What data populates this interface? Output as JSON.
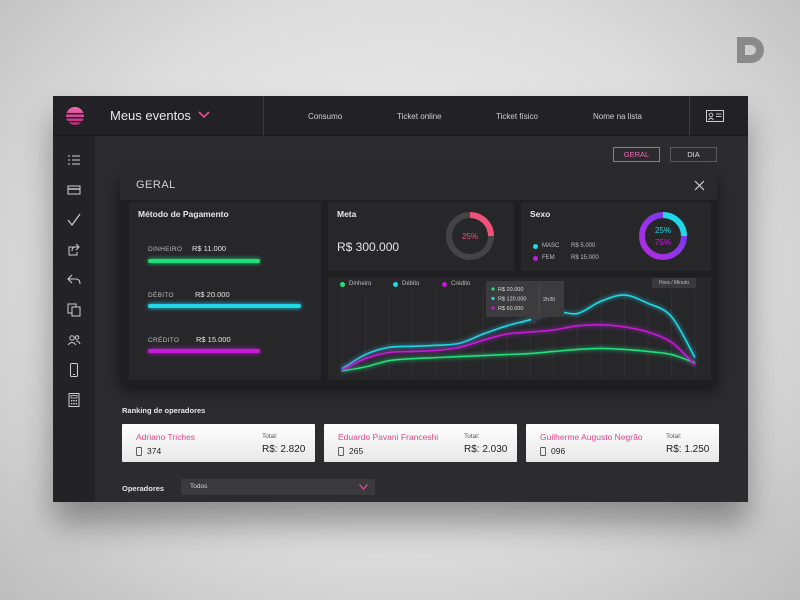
{
  "header": {
    "event_label": "Meus eventos",
    "nav": [
      "Consumo",
      "Ticket online",
      "Ticket físico",
      "Nome na lista"
    ]
  },
  "sidebar": {
    "icons": [
      "list-icon",
      "credit-card-icon",
      "check-icon",
      "share-icon",
      "undo-icon",
      "copy-icon",
      "users-icon",
      "mobile-icon",
      "calculator-icon"
    ]
  },
  "tabs": {
    "geral": "GERAL",
    "dia": "DIA",
    "active": "geral"
  },
  "panel": {
    "title": "GERAL"
  },
  "payment": {
    "title": "Método de Pagamento",
    "items": [
      {
        "label": "DINHEIRO",
        "value": "R$ 11.000",
        "color": "#1ee07a",
        "fraction": 0.73
      },
      {
        "label": "DÉBITO",
        "value": "R$ 20.000",
        "color": "#20d8e8",
        "fraction": 1.0
      },
      {
        "label": "CRÉDITO",
        "value": "R$ 15.000",
        "color": "#c51bd9",
        "fraction": 0.73
      }
    ]
  },
  "meta": {
    "title": "Meta",
    "value": "R$ 300.000",
    "percent": "25%",
    "fraction": 0.25,
    "color": "#f0507a"
  },
  "sexo": {
    "title": "Sexo",
    "items": [
      {
        "label": "MASC",
        "value": "R$ 5.000",
        "percent": "25%",
        "color": "#20d8e8",
        "fraction": 0.25
      },
      {
        "label": "FEM",
        "value": "R$ 15.000",
        "percent": "75%",
        "color": "#c51bd9",
        "fraction": 0.75
      }
    ]
  },
  "chart_data": {
    "type": "line",
    "legend": [
      "Dinheiro",
      "Débito",
      "Crédito"
    ],
    "colors": [
      "#1ee07a",
      "#20d8e8",
      "#c51bd9"
    ],
    "toggle": "Hora / Minuto",
    "tooltip": {
      "values": [
        "R$ 20.000",
        "R$ 120.000",
        "R$ 60.000"
      ],
      "time": "2h30"
    },
    "x": [
      0,
      1,
      2,
      3,
      4,
      5,
      6,
      7,
      8,
      9,
      10,
      11,
      12,
      13,
      14,
      15
    ],
    "series": [
      {
        "name": "Dinheiro",
        "values": [
          2,
          6,
          12,
          14,
          15,
          16,
          17,
          18,
          19,
          21,
          23,
          24,
          23,
          21,
          18,
          10
        ]
      },
      {
        "name": "Débito",
        "values": [
          4,
          18,
          25,
          26,
          27,
          29,
          38,
          46,
          52,
          60,
          58,
          70,
          76,
          68,
          55,
          15
        ]
      },
      {
        "name": "Crédito",
        "values": [
          3,
          14,
          20,
          21,
          22,
          25,
          32,
          38,
          40,
          42,
          46,
          47,
          45,
          40,
          30,
          8
        ]
      }
    ],
    "ylim": [
      0,
      80
    ]
  },
  "ranking": {
    "title": "Ranking de operadores",
    "total_label": "Total:",
    "operators": [
      {
        "name": "Adriano Triches",
        "count": "374",
        "total": "R$: 2.820"
      },
      {
        "name": "Eduardo Pavani Franceshi",
        "count": "265",
        "total": "R$: 2.030"
      },
      {
        "name": "Guilherme Augusto Negrão",
        "count": "096",
        "total": "R$: 1.250"
      }
    ]
  },
  "filter": {
    "label": "Operadores",
    "value": "Todos"
  },
  "colors": {
    "accent": "#e84b9a",
    "background": "#2c2c2e",
    "panel": "#1f1f21"
  }
}
